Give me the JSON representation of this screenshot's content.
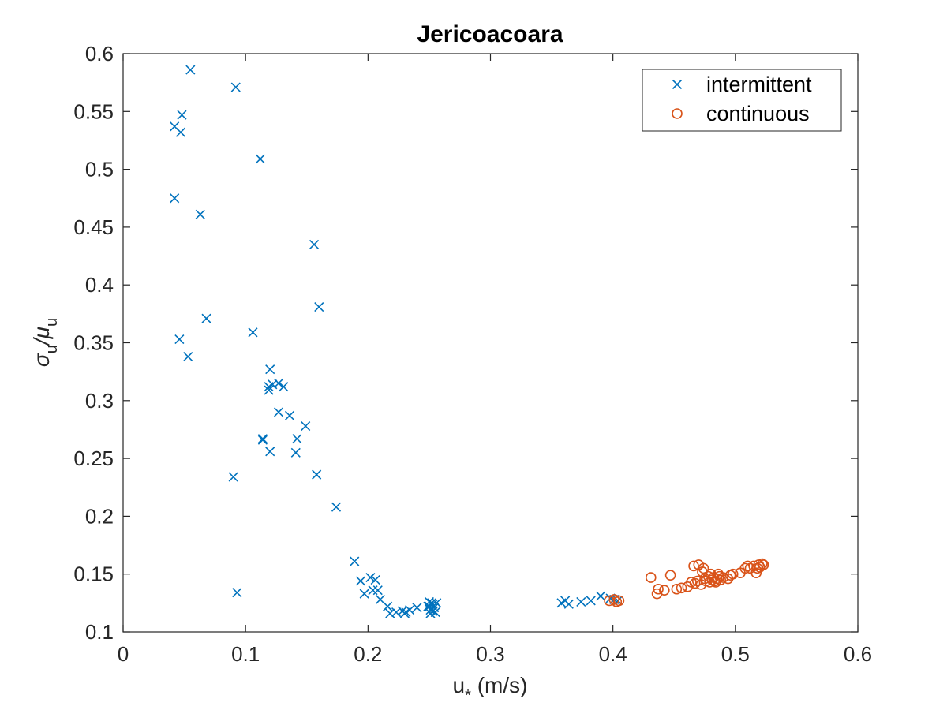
{
  "chart_data": {
    "type": "scatter",
    "title": "Jericoacoara",
    "xlabel": {
      "base": "u",
      "sub": "*",
      "suffix": " (m/s)"
    },
    "ylabel": {
      "parts": [
        {
          "t": "σ",
          "sub": "u"
        },
        {
          "t": "/μ",
          "sub": "u"
        }
      ]
    },
    "xlim": [
      0,
      0.6
    ],
    "ylim": [
      0.1,
      0.6
    ],
    "xticks": [
      0,
      0.1,
      0.2,
      0.3,
      0.4,
      0.5,
      0.6
    ],
    "xtick_labels": [
      "0",
      "0.1",
      "0.2",
      "0.3",
      "0.4",
      "0.5",
      "0.6"
    ],
    "yticks": [
      0.1,
      0.15,
      0.2,
      0.25,
      0.3,
      0.35,
      0.4,
      0.45,
      0.5,
      0.55,
      0.6
    ],
    "ytick_labels": [
      "0.1",
      "0.15",
      "0.2",
      "0.25",
      "0.3",
      "0.35",
      "0.4",
      "0.45",
      "0.5",
      "0.55",
      "0.6"
    ],
    "grid": false,
    "legend_position": "top-right",
    "series": [
      {
        "name": "intermittent",
        "marker": "x",
        "color": "#0072BD",
        "points": [
          [
            0.055,
            0.586
          ],
          [
            0.092,
            0.571
          ],
          [
            0.048,
            0.547
          ],
          [
            0.042,
            0.537
          ],
          [
            0.047,
            0.532
          ],
          [
            0.112,
            0.509
          ],
          [
            0.042,
            0.475
          ],
          [
            0.063,
            0.461
          ],
          [
            0.156,
            0.435
          ],
          [
            0.16,
            0.381
          ],
          [
            0.068,
            0.371
          ],
          [
            0.106,
            0.359
          ],
          [
            0.046,
            0.353
          ],
          [
            0.053,
            0.338
          ],
          [
            0.12,
            0.327
          ],
          [
            0.127,
            0.315
          ],
          [
            0.122,
            0.314
          ],
          [
            0.119,
            0.312
          ],
          [
            0.131,
            0.312
          ],
          [
            0.119,
            0.309
          ],
          [
            0.127,
            0.29
          ],
          [
            0.136,
            0.287
          ],
          [
            0.149,
            0.278
          ],
          [
            0.114,
            0.266
          ],
          [
            0.114,
            0.267
          ],
          [
            0.142,
            0.267
          ],
          [
            0.12,
            0.256
          ],
          [
            0.141,
            0.255
          ],
          [
            0.158,
            0.236
          ],
          [
            0.09,
            0.234
          ],
          [
            0.174,
            0.208
          ],
          [
            0.189,
            0.161
          ],
          [
            0.202,
            0.147
          ],
          [
            0.194,
            0.144
          ],
          [
            0.206,
            0.145
          ],
          [
            0.204,
            0.136
          ],
          [
            0.208,
            0.136
          ],
          [
            0.197,
            0.133
          ],
          [
            0.093,
            0.134
          ],
          [
            0.21,
            0.128
          ],
          [
            0.216,
            0.122
          ],
          [
            0.218,
            0.116
          ],
          [
            0.223,
            0.117
          ],
          [
            0.228,
            0.118
          ],
          [
            0.231,
            0.117
          ],
          [
            0.23,
            0.116
          ],
          [
            0.234,
            0.119
          ],
          [
            0.24,
            0.121
          ],
          [
            0.25,
            0.126
          ],
          [
            0.252,
            0.125
          ],
          [
            0.25,
            0.122
          ],
          [
            0.253,
            0.124
          ],
          [
            0.254,
            0.121
          ],
          [
            0.251,
            0.119
          ],
          [
            0.253,
            0.118
          ],
          [
            0.255,
            0.117
          ],
          [
            0.249,
            0.122
          ],
          [
            0.256,
            0.125
          ],
          [
            0.251,
            0.116
          ],
          [
            0.358,
            0.125
          ],
          [
            0.361,
            0.127
          ],
          [
            0.364,
            0.124
          ],
          [
            0.374,
            0.126
          ],
          [
            0.382,
            0.127
          ],
          [
            0.39,
            0.131
          ],
          [
            0.398,
            0.129
          ],
          [
            0.401,
            0.128
          ],
          [
            0.404,
            0.127
          ]
        ]
      },
      {
        "name": "continuous",
        "marker": "o",
        "color": "#D95319",
        "points": [
          [
            0.397,
            0.127
          ],
          [
            0.401,
            0.128
          ],
          [
            0.403,
            0.126
          ],
          [
            0.405,
            0.127
          ],
          [
            0.431,
            0.147
          ],
          [
            0.436,
            0.133
          ],
          [
            0.437,
            0.137
          ],
          [
            0.442,
            0.136
          ],
          [
            0.447,
            0.149
          ],
          [
            0.452,
            0.137
          ],
          [
            0.456,
            0.138
          ],
          [
            0.461,
            0.139
          ],
          [
            0.464,
            0.143
          ],
          [
            0.466,
            0.157
          ],
          [
            0.467,
            0.142
          ],
          [
            0.469,
            0.144
          ],
          [
            0.47,
            0.158
          ],
          [
            0.472,
            0.141
          ],
          [
            0.473,
            0.152
          ],
          [
            0.474,
            0.155
          ],
          [
            0.475,
            0.146
          ],
          [
            0.476,
            0.144
          ],
          [
            0.478,
            0.148
          ],
          [
            0.479,
            0.143
          ],
          [
            0.48,
            0.15
          ],
          [
            0.481,
            0.145
          ],
          [
            0.482,
            0.147
          ],
          [
            0.483,
            0.144
          ],
          [
            0.484,
            0.143
          ],
          [
            0.485,
            0.146
          ],
          [
            0.486,
            0.15
          ],
          [
            0.487,
            0.148
          ],
          [
            0.488,
            0.145
          ],
          [
            0.49,
            0.147
          ],
          [
            0.494,
            0.146
          ],
          [
            0.496,
            0.149
          ],
          [
            0.498,
            0.15
          ],
          [
            0.504,
            0.151
          ],
          [
            0.508,
            0.155
          ],
          [
            0.51,
            0.157
          ],
          [
            0.512,
            0.155
          ],
          [
            0.515,
            0.157
          ],
          [
            0.517,
            0.151
          ],
          [
            0.518,
            0.155
          ],
          [
            0.519,
            0.158
          ],
          [
            0.52,
            0.156
          ],
          [
            0.522,
            0.159
          ],
          [
            0.523,
            0.158
          ]
        ]
      }
    ]
  }
}
